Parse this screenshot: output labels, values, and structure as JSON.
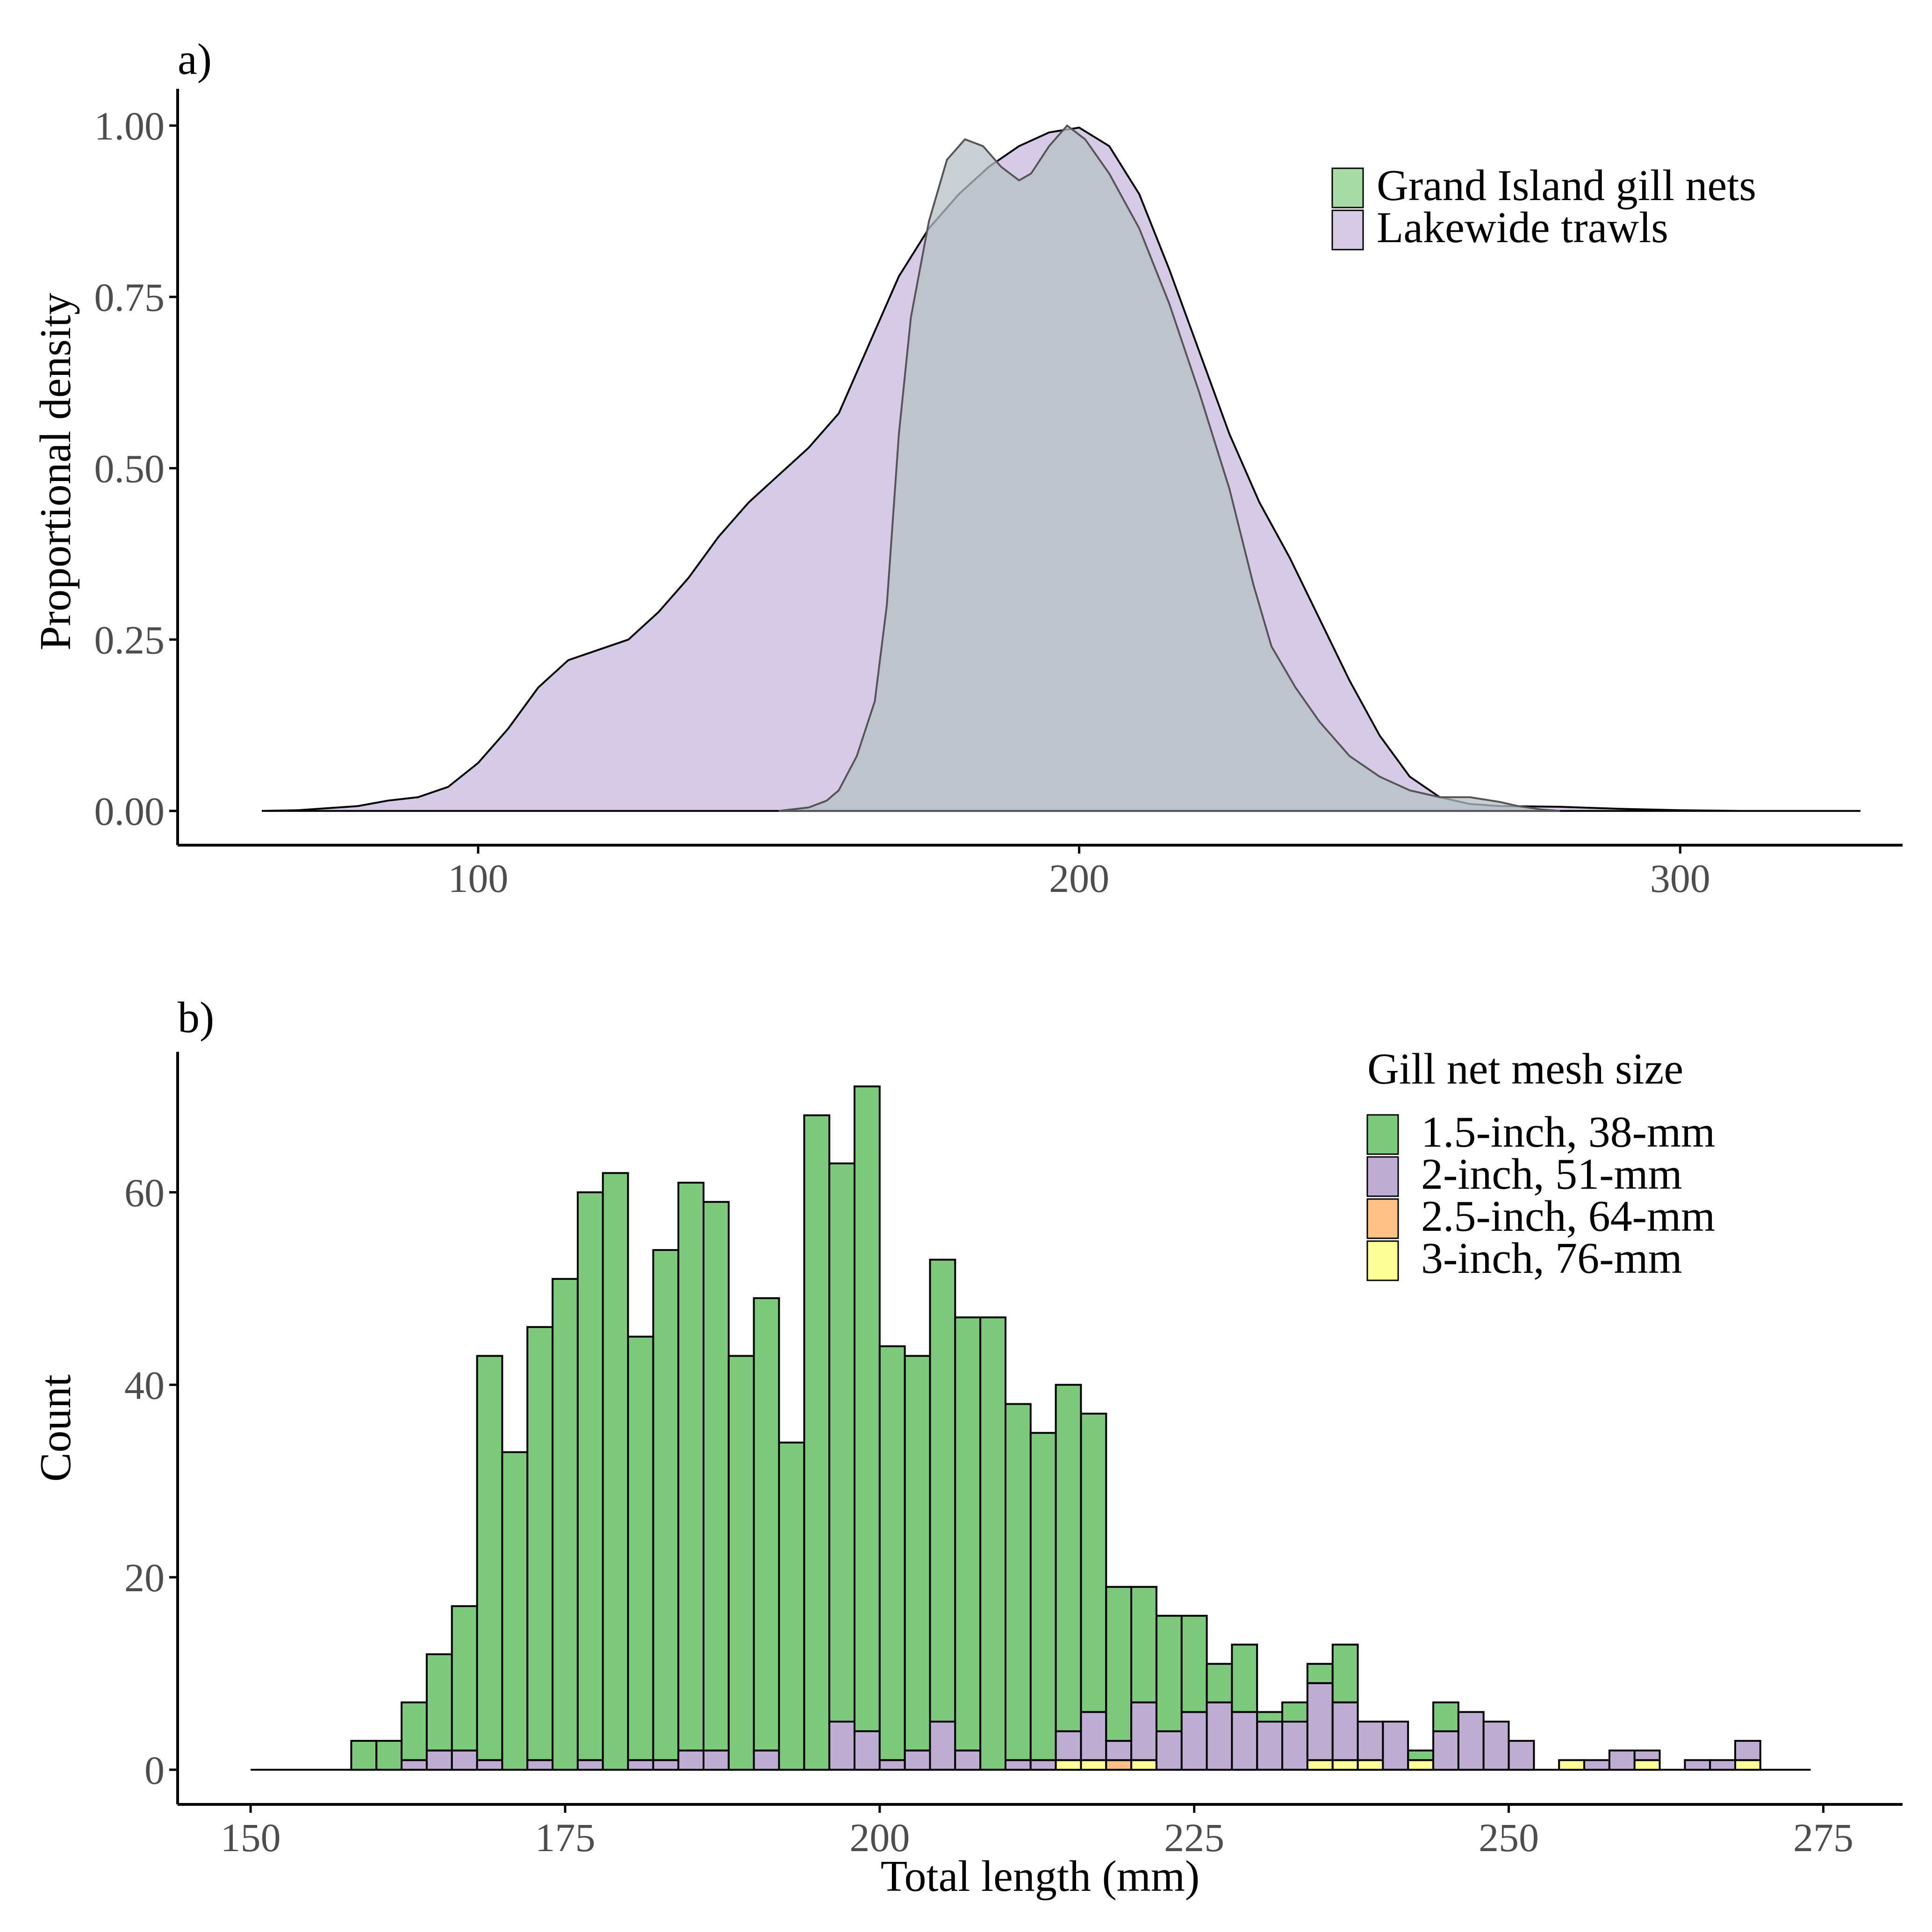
{
  "colors": {
    "grand_island": "#a8dba8",
    "lakewide": "#d5cbe6",
    "overlap": "#b5c0c4",
    "mesh_1_5": "#7fc97f",
    "mesh_2": "#beaed4",
    "mesh_2_5": "#fdc086",
    "mesh_3": "#ffff99",
    "axis": "#000000",
    "tick_label": "#4d4d4d"
  },
  "chart_data": [
    {
      "panel_label": "a)",
      "type": "area",
      "xlabel": "",
      "ylabel": "Proportional density",
      "xlim": [
        50,
        337
      ],
      "ylim": [
        -0.05,
        1.04
      ],
      "x_ticks": [
        100,
        200,
        300
      ],
      "x_tick_labels": [
        "100",
        "200",
        "300"
      ],
      "y_ticks": [
        0,
        0.25,
        0.5,
        0.75,
        1.0
      ],
      "y_tick_labels": [
        "0.00",
        "0.25",
        "0.50",
        "0.75",
        "1.00"
      ],
      "grid": false,
      "legend_position": "top-right",
      "series": [
        {
          "name": "Lakewide trawls",
          "color_key": "lakewide",
          "points": [
            [
              64,
              0
            ],
            [
              70,
              0.001
            ],
            [
              80,
              0.007
            ],
            [
              85,
              0.015
            ],
            [
              90,
              0.02
            ],
            [
              95,
              0.035
            ],
            [
              100,
              0.07
            ],
            [
              105,
              0.12
            ],
            [
              110,
              0.18
            ],
            [
              115,
              0.22
            ],
            [
              120,
              0.235
            ],
            [
              125,
              0.25
            ],
            [
              130,
              0.29
            ],
            [
              135,
              0.34
            ],
            [
              140,
              0.4
            ],
            [
              145,
              0.45
            ],
            [
              150,
              0.49
            ],
            [
              155,
              0.53
            ],
            [
              160,
              0.58
            ],
            [
              165,
              0.68
            ],
            [
              170,
              0.78
            ],
            [
              175,
              0.85
            ],
            [
              180,
              0.9
            ],
            [
              185,
              0.94
            ],
            [
              190,
              0.97
            ],
            [
              195,
              0.99
            ],
            [
              200,
              0.997
            ],
            [
              205,
              0.97
            ],
            [
              210,
              0.9
            ],
            [
              215,
              0.79
            ],
            [
              220,
              0.67
            ],
            [
              225,
              0.55
            ],
            [
              230,
              0.45
            ],
            [
              235,
              0.37
            ],
            [
              240,
              0.28
            ],
            [
              245,
              0.19
            ],
            [
              250,
              0.11
            ],
            [
              255,
              0.05
            ],
            [
              260,
              0.02
            ],
            [
              265,
              0.01
            ],
            [
              270,
              0.007
            ],
            [
              280,
              0.006
            ],
            [
              290,
              0.003
            ],
            [
              300,
              0.001
            ],
            [
              310,
              0.0
            ],
            [
              320,
              0.0
            ],
            [
              330,
              0.0
            ]
          ]
        },
        {
          "name": "Grand Island gill nets",
          "color_key": "grand_island",
          "points": [
            [
              150,
              0
            ],
            [
              155,
              0.005
            ],
            [
              158,
              0.015
            ],
            [
              160,
              0.03
            ],
            [
              163,
              0.08
            ],
            [
              166,
              0.16
            ],
            [
              168,
              0.3
            ],
            [
              170,
              0.55
            ],
            [
              172,
              0.72
            ],
            [
              175,
              0.86
            ],
            [
              178,
              0.95
            ],
            [
              181,
              0.98
            ],
            [
              184,
              0.97
            ],
            [
              187,
              0.94
            ],
            [
              190,
              0.92
            ],
            [
              192,
              0.93
            ],
            [
              195,
              0.97
            ],
            [
              198,
              1.0
            ],
            [
              201,
              0.98
            ],
            [
              205,
              0.93
            ],
            [
              210,
              0.85
            ],
            [
              215,
              0.74
            ],
            [
              220,
              0.61
            ],
            [
              225,
              0.47
            ],
            [
              229,
              0.33
            ],
            [
              232,
              0.24
            ],
            [
              236,
              0.18
            ],
            [
              240,
              0.13
            ],
            [
              245,
              0.08
            ],
            [
              250,
              0.05
            ],
            [
              255,
              0.03
            ],
            [
              260,
              0.02
            ],
            [
              265,
              0.02
            ],
            [
              270,
              0.013
            ],
            [
              273,
              0.007
            ],
            [
              277,
              0.002
            ],
            [
              280,
              0.0
            ]
          ]
        }
      ]
    },
    {
      "panel_label": "b)",
      "type": "bar",
      "stacked": true,
      "xlabel": "Total length (mm)",
      "ylabel": "Count",
      "xlim": [
        144.2,
        281.3
      ],
      "ylim": [
        -3.6,
        74.6
      ],
      "x_ticks": [
        150,
        175,
        200,
        225,
        250,
        275
      ],
      "x_tick_labels": [
        "150",
        "175",
        "200",
        "225",
        "250",
        "275"
      ],
      "y_ticks": [
        0,
        20,
        40,
        60
      ],
      "y_tick_labels": [
        "0",
        "20",
        "40",
        "60"
      ],
      "grid": false,
      "legend_title": "Gill net mesh size",
      "legend_position": "top-right",
      "bin_width": 2,
      "bin_centers": [
        151,
        153,
        155,
        157,
        159,
        161,
        163,
        165,
        167,
        169,
        171,
        173,
        175,
        177,
        179,
        181,
        183,
        185,
        187,
        189,
        191,
        193,
        195,
        197,
        199,
        201,
        203,
        205,
        207,
        209,
        211,
        213,
        215,
        217,
        219,
        221,
        223,
        225,
        227,
        229,
        231,
        233,
        235,
        237,
        239,
        241,
        243,
        245,
        247,
        249,
        251,
        253,
        255,
        257,
        259,
        261,
        263,
        265,
        267,
        269,
        271,
        273
      ],
      "series": [
        {
          "name": "3-inch, 76-mm",
          "color_key": "mesh_3",
          "values": [
            0,
            0,
            0,
            0,
            0,
            0,
            0,
            0,
            0,
            0,
            0,
            0,
            0,
            0,
            0,
            0,
            0,
            0,
            0,
            0,
            0,
            0,
            0,
            0,
            0,
            0,
            0,
            0,
            0,
            0,
            0,
            0,
            1,
            1,
            0,
            1,
            0,
            0,
            0,
            0,
            0,
            0,
            1,
            1,
            1,
            0,
            1,
            0,
            0,
            0,
            0,
            0,
            1,
            0,
            0,
            1,
            0,
            0,
            0,
            1,
            0,
            0
          ]
        },
        {
          "name": "2.5-inch, 64-mm",
          "color_key": "mesh_2_5",
          "values": [
            0,
            0,
            0,
            0,
            0,
            0,
            0,
            0,
            0,
            0,
            0,
            0,
            0,
            0,
            0,
            0,
            0,
            0,
            0,
            0,
            0,
            0,
            0,
            0,
            0,
            0,
            0,
            0,
            0,
            0,
            0,
            0,
            0,
            0,
            1,
            0,
            0,
            0,
            0,
            0,
            0,
            0,
            0,
            0,
            0,
            0,
            0,
            0,
            0,
            0,
            0,
            0,
            0,
            0,
            0,
            0,
            0,
            0,
            0,
            0,
            0,
            0
          ]
        },
        {
          "name": "2-inch, 51-mm",
          "color_key": "mesh_2",
          "values": [
            0,
            0,
            0,
            0,
            0,
            0,
            1,
            2,
            2,
            1,
            0,
            1,
            0,
            1,
            0,
            1,
            1,
            2,
            2,
            0,
            2,
            0,
            0,
            5,
            4,
            1,
            2,
            5,
            2,
            0,
            1,
            1,
            3,
            5,
            2,
            6,
            4,
            6,
            7,
            6,
            5,
            5,
            8,
            6,
            4,
            5,
            0,
            4,
            6,
            5,
            3,
            0,
            0,
            1,
            2,
            1,
            0,
            1,
            1,
            2,
            0,
            0
          ]
        },
        {
          "name": "1.5-inch, 38-mm",
          "color_key": "mesh_1_5",
          "values": [
            0,
            0,
            0,
            0,
            3,
            3,
            6,
            10,
            15,
            42,
            33,
            45,
            51,
            59,
            62,
            44,
            53,
            59,
            57,
            43,
            47,
            34,
            68,
            58,
            67,
            43,
            41,
            48,
            45,
            47,
            37,
            34,
            36,
            31,
            16,
            12,
            12,
            10,
            4,
            7,
            1,
            2,
            2,
            6,
            0,
            0,
            1,
            3,
            0,
            0,
            0,
            0,
            0,
            0,
            0,
            0,
            0,
            0,
            0,
            0,
            0,
            0
          ]
        }
      ]
    }
  ]
}
